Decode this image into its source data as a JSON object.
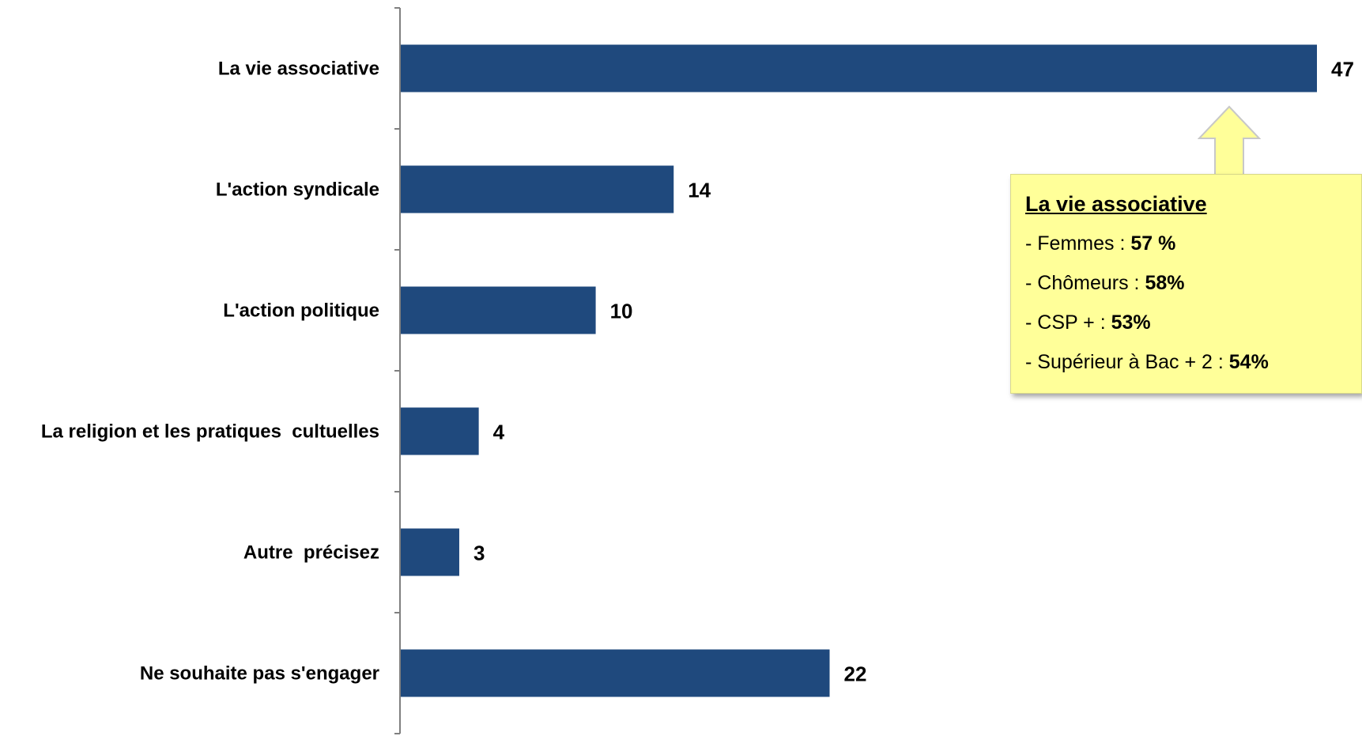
{
  "chart_data": {
    "type": "bar",
    "orientation": "horizontal",
    "categories": [
      "La vie associative",
      "L'action syndicale",
      "L'action politique",
      "La religion et les pratiques  cultuelles",
      "Autre  précisez",
      "Ne souhaite pas s'engager"
    ],
    "values": [
      47,
      14,
      10,
      4,
      3,
      22
    ],
    "data_labels": [
      "47",
      "14",
      "10",
      "4",
      "3",
      "22"
    ],
    "xlim": [
      0,
      47
    ],
    "grid": false,
    "bar_color": "#1f497d"
  },
  "callout": {
    "title": "La vie associative",
    "items": [
      {
        "prefix": "- Femmes : ",
        "value": "57 %"
      },
      {
        "prefix": "- Chômeurs : ",
        "value": "58%"
      },
      {
        "prefix": "- CSP + : ",
        "value": "53%"
      },
      {
        "prefix": "- Supérieur à Bac + 2 : ",
        "value": "54%"
      }
    ],
    "background": "#ffff99",
    "arrow_color": "#ffff99"
  }
}
